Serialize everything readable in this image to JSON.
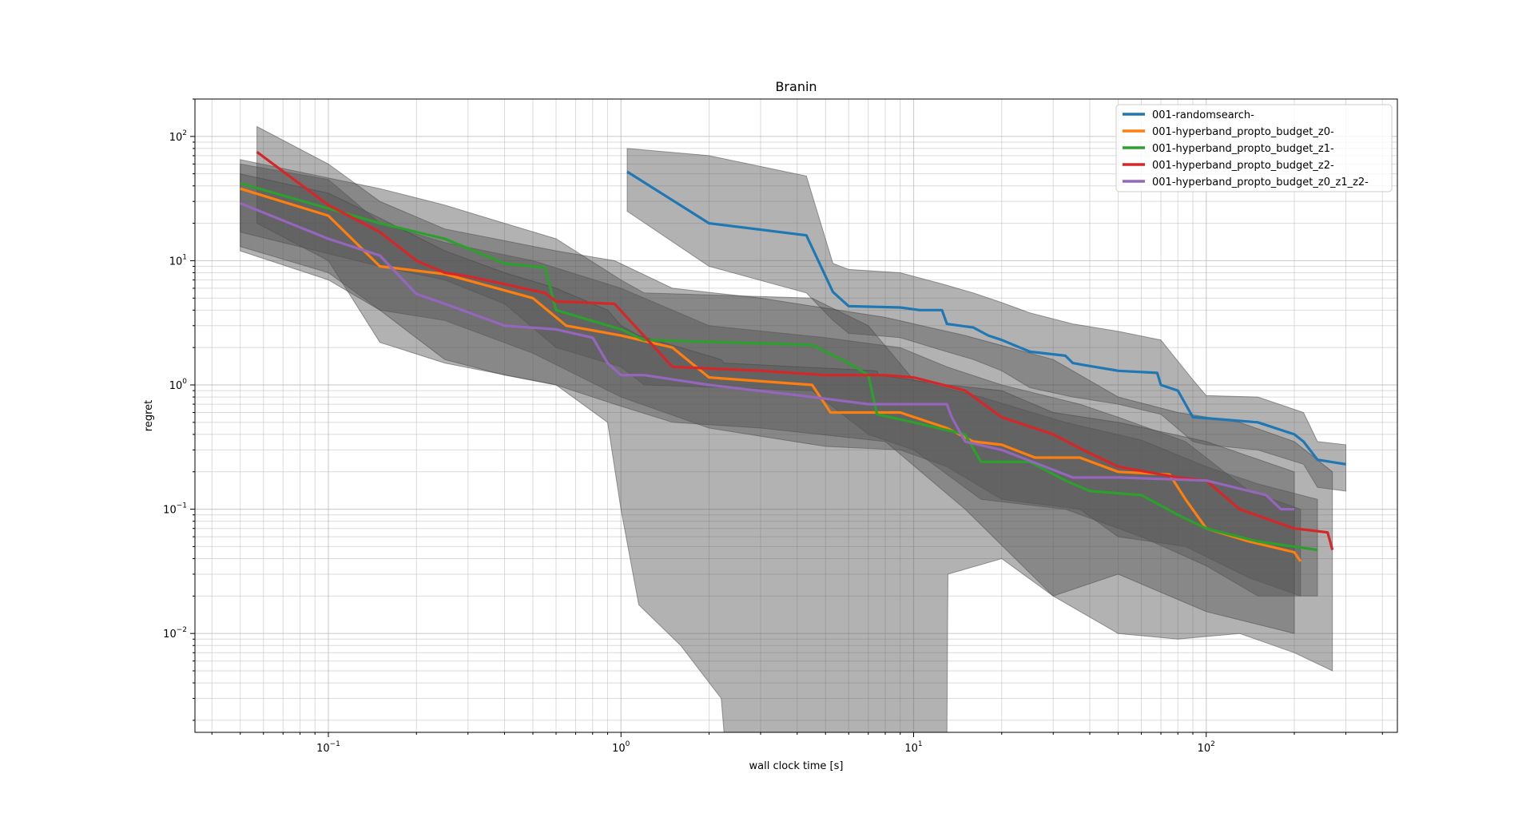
{
  "chart_data": {
    "type": "line",
    "title": "Branin",
    "xlabel": "wall clock time [s]",
    "ylabel": "regret",
    "xscale": "log",
    "yscale": "log",
    "xlim": [
      0.035,
      450
    ],
    "ylim": [
      0.0016,
      200
    ],
    "grid": true,
    "grid_minor": true,
    "legend_position": "top-right",
    "x_ticks": [
      {
        "value": 0.1,
        "base": "10",
        "exp": "−1"
      },
      {
        "value": 1,
        "base": "10",
        "exp": "0"
      },
      {
        "value": 10,
        "base": "10",
        "exp": "1"
      },
      {
        "value": 100,
        "base": "10",
        "exp": "2"
      }
    ],
    "y_ticks": [
      {
        "value": 0.01,
        "base": "10",
        "exp": "−2"
      },
      {
        "value": 0.1,
        "base": "10",
        "exp": "−1"
      },
      {
        "value": 1,
        "base": "10",
        "exp": "0"
      },
      {
        "value": 10,
        "base": "10",
        "exp": "1"
      },
      {
        "value": 100,
        "base": "10",
        "exp": "2"
      }
    ],
    "band_color": "#555555",
    "series": [
      {
        "name": "001-randomsearch-",
        "color": "#1f77b4",
        "x": [
          1.05,
          2.0,
          4.3,
          5.3,
          6.0,
          9.0,
          10.5,
          12.5,
          13.0,
          16.0,
          18.0,
          20.0,
          25.0,
          33.0,
          35.0,
          38.0,
          50.0,
          68.0,
          70.0,
          80.0,
          90.0,
          100.0,
          150.0,
          200.0,
          215.0,
          240.0,
          300.0
        ],
        "y": [
          52,
          20,
          16,
          5.6,
          4.3,
          4.2,
          4.0,
          4.0,
          3.1,
          2.9,
          2.5,
          2.3,
          1.85,
          1.72,
          1.5,
          1.45,
          1.3,
          1.25,
          1.0,
          0.9,
          0.55,
          0.54,
          0.5,
          0.4,
          0.35,
          0.25,
          0.23
        ],
        "band": {
          "x": [
            1.05,
            2.0,
            4.3,
            5.3,
            6.0,
            9.0,
            12.5,
            16.0,
            20.0,
            25.0,
            35.0,
            50.0,
            70.0,
            90.0,
            100.0,
            150.0,
            215.0,
            240.0,
            300.0
          ],
          "lo": [
            25,
            9,
            5.5,
            3.3,
            2.6,
            2.4,
            1.9,
            1.6,
            1.3,
            0.95,
            0.8,
            0.7,
            0.58,
            0.35,
            0.33,
            0.3,
            0.23,
            0.15,
            0.14
          ],
          "hi": [
            80,
            70,
            48,
            9.5,
            8.5,
            8.0,
            6.5,
            5.5,
            4.6,
            3.8,
            3.1,
            2.7,
            2.3,
            1.1,
            0.82,
            0.8,
            0.6,
            0.35,
            0.33
          ]
        }
      },
      {
        "name": "001-hyperband_propto_budget_z0-",
        "color": "#ff7f0e",
        "x": [
          0.05,
          0.1,
          0.15,
          0.25,
          0.5,
          0.65,
          1.0,
          1.5,
          2.0,
          4.5,
          5.2,
          7.0,
          9.0,
          13.0,
          16.0,
          20.0,
          26.0,
          37.0,
          50.0,
          75.0,
          85.0,
          100.0,
          140.0,
          200.0,
          210.0
        ],
        "y": [
          38,
          23,
          9.0,
          7.8,
          5.0,
          3.0,
          2.5,
          2.0,
          1.15,
          1.0,
          0.6,
          0.6,
          0.6,
          0.45,
          0.35,
          0.33,
          0.26,
          0.26,
          0.2,
          0.19,
          0.12,
          0.07,
          0.055,
          0.045,
          0.038
        ],
        "band": {
          "x": [
            0.05,
            0.1,
            0.15,
            0.25,
            0.5,
            1.0,
            2.0,
            5.0,
            9.0,
            13.0,
            20.0,
            37.0,
            50.0,
            85.0,
            140.0,
            210.0
          ],
          "lo": [
            13,
            8,
            4.0,
            3.3,
            1.8,
            0.8,
            0.45,
            0.32,
            0.3,
            0.22,
            0.12,
            0.1,
            0.06,
            0.05,
            0.028,
            0.02
          ],
          "hi": [
            60,
            45,
            20,
            14,
            10,
            6.0,
            3.0,
            2.4,
            2.0,
            1.4,
            1.0,
            0.7,
            0.55,
            0.35,
            0.14,
            0.1
          ]
        }
      },
      {
        "name": "001-hyperband_propto_budget_z1-",
        "color": "#2ca02c",
        "x": [
          0.05,
          0.15,
          0.25,
          0.4,
          0.55,
          0.6,
          1.0,
          1.2,
          4.5,
          6.0,
          7.0,
          7.5,
          10.0,
          15.0,
          17.0,
          25.0,
          33.0,
          40.0,
          60.0,
          80.0,
          100.0,
          150.0,
          240.0
        ],
        "y": [
          42,
          20,
          15,
          9.5,
          8.8,
          4.0,
          2.8,
          2.3,
          2.1,
          1.5,
          1.2,
          0.58,
          0.5,
          0.4,
          0.24,
          0.24,
          0.17,
          0.14,
          0.13,
          0.09,
          0.07,
          0.055,
          0.047
        ],
        "band": {
          "x": [
            0.05,
            0.15,
            0.25,
            0.4,
            0.6,
            1.0,
            1.2,
            4.5,
            7.0,
            10.0,
            17.0,
            33.0,
            60.0,
            100.0,
            150.0,
            240.0
          ],
          "lo": [
            17,
            9,
            7,
            4.5,
            2.0,
            1.4,
            1.0,
            0.9,
            0.4,
            0.3,
            0.12,
            0.1,
            0.06,
            0.035,
            0.02,
            0.02
          ],
          "hi": [
            65,
            38,
            28,
            20,
            15,
            7.0,
            5.5,
            5.0,
            3.0,
            1.1,
            0.8,
            0.5,
            0.36,
            0.22,
            0.16,
            0.12
          ]
        }
      },
      {
        "name": "001-hyperband_propto_budget_z2-",
        "color": "#d62728",
        "x": [
          0.057,
          0.1,
          0.15,
          0.2,
          0.25,
          0.3,
          0.55,
          0.6,
          0.95,
          1.5,
          3.0,
          5.0,
          8.0,
          10.0,
          15.0,
          20.0,
          30.0,
          38.0,
          50.0,
          80.0,
          100.0,
          130.0,
          200.0,
          260.0,
          270.0
        ],
        "y": [
          75,
          28,
          17,
          10,
          8.0,
          7.5,
          5.5,
          4.7,
          4.5,
          1.4,
          1.3,
          1.2,
          1.2,
          1.15,
          0.9,
          0.55,
          0.4,
          0.3,
          0.22,
          0.18,
          0.17,
          0.1,
          0.07,
          0.065,
          0.047
        ],
        "band": {
          "x": [
            0.057,
            0.1,
            0.15,
            0.25,
            0.6,
            0.95,
            1.5,
            3.0,
            8.0,
            15.0,
            30.0,
            50.0,
            80.0,
            130.0,
            200.0,
            270.0
          ],
          "lo": [
            20,
            10,
            2.2,
            1.5,
            1.0,
            0.7,
            0.5,
            0.45,
            0.35,
            0.1,
            0.02,
            0.01,
            0.009,
            0.01,
            0.007,
            0.005
          ],
          "hi": [
            120,
            60,
            30,
            18,
            12,
            10,
            6,
            5.0,
            3.5,
            2.5,
            1.6,
            0.8,
            0.6,
            0.5,
            0.35,
            0.2
          ]
        }
      },
      {
        "name": "001-hyperband_propto_budget_z0_z1_z2-",
        "color": "#9467bd",
        "x": [
          0.05,
          0.1,
          0.15,
          0.2,
          0.25,
          0.4,
          0.6,
          0.8,
          0.9,
          1.0,
          1.2,
          2.0,
          4.5,
          7.0,
          10.0,
          13.0,
          13.5,
          15.0,
          20.0,
          35.0,
          50.0,
          100.0,
          160.0,
          180.0,
          200.0
        ],
        "y": [
          29,
          15,
          11,
          5.4,
          4.5,
          3.0,
          2.8,
          2.4,
          1.5,
          1.2,
          1.2,
          1.0,
          0.8,
          0.7,
          0.7,
          0.7,
          0.55,
          0.35,
          0.3,
          0.18,
          0.18,
          0.17,
          0.13,
          0.1,
          0.1
        ],
        "band": {
          "x": [
            0.05,
            0.1,
            0.15,
            0.25,
            0.4,
            0.6,
            0.9,
            1.0,
            1.15,
            1.6,
            2.2,
            2.25,
            7.5,
            7.6,
            13.0,
            13.1,
            20.0,
            30.0,
            50.0,
            100.0,
            200.0
          ],
          "lo": [
            12,
            7,
            4.0,
            1.6,
            1.2,
            1.0,
            0.5,
            0.1,
            0.017,
            0.008,
            0.003,
            0.0016,
            0.0016,
            0.0016,
            0.0016,
            0.03,
            0.04,
            0.02,
            0.03,
            0.015,
            0.01
          ],
          "hi": [
            50,
            35,
            22,
            12,
            8,
            6,
            4,
            3,
            2.5,
            2.0,
            1.6,
            1.5,
            1.3,
            1.2,
            1.0,
            1.0,
            0.9,
            0.6,
            0.5,
            0.35,
            0.2
          ]
        }
      }
    ]
  }
}
